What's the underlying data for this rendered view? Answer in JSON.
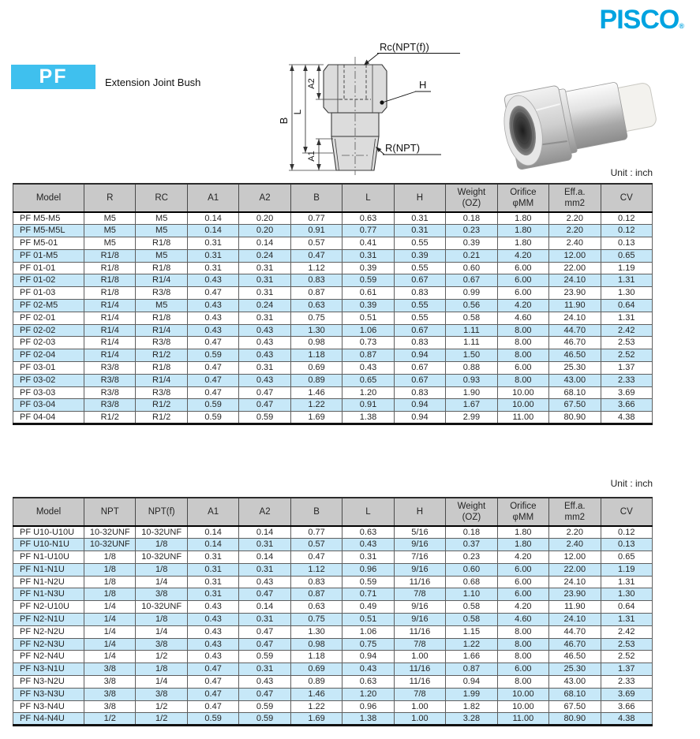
{
  "brand": {
    "logo_text": "PISCO",
    "registered_mark": "®"
  },
  "header": {
    "series_code": "PF",
    "series_title": "Extension Joint Bush"
  },
  "unit_note": "Unit : inch",
  "diagram": {
    "labels": {
      "top_thread": "Rc(NPT(f))",
      "hex": "H",
      "bottom_thread": "R(NPT)",
      "dim_b": "B",
      "dim_l": "L",
      "dim_a2": "A2",
      "dim_a1": "A1"
    }
  },
  "colors": {
    "accent": "#00A3E0",
    "badge": "#3FC0EE",
    "table_header_bg": "#C9C9C9",
    "row_alt": "#C7E8F8"
  },
  "tables": [
    {
      "name": "r-rc-spec-table",
      "columns": [
        "Model",
        "R",
        "RC",
        "A1",
        "A2",
        "B",
        "L",
        "H",
        "Weight\n(OZ)",
        "Orifice\nφMM",
        "Eff.a.\nmm2",
        "CV"
      ],
      "rows": [
        [
          "PF M5-M5",
          "M5",
          "M5",
          "0.14",
          "0.20",
          "0.77",
          "0.63",
          "0.31",
          "0.18",
          "1.80",
          "2.20",
          "0.12"
        ],
        [
          "PF M5-M5L",
          "M5",
          "M5",
          "0.14",
          "0.20",
          "0.91",
          "0.77",
          "0.31",
          "0.23",
          "1.80",
          "2.20",
          "0.12"
        ],
        [
          "PF M5-01",
          "M5",
          "R1/8",
          "0.31",
          "0.14",
          "0.57",
          "0.41",
          "0.55",
          "0.39",
          "1.80",
          "2.40",
          "0.13"
        ],
        [
          "PF 01-M5",
          "R1/8",
          "M5",
          "0.31",
          "0.24",
          "0.47",
          "0.31",
          "0.39",
          "0.21",
          "4.20",
          "12.00",
          "0.65"
        ],
        [
          "PF 01-01",
          "R1/8",
          "R1/8",
          "0.31",
          "0.31",
          "1.12",
          "0.39",
          "0.55",
          "0.60",
          "6.00",
          "22.00",
          "1.19"
        ],
        [
          "PF 01-02",
          "R1/8",
          "R1/4",
          "0.43",
          "0.31",
          "0.83",
          "0.59",
          "0.67",
          "0.67",
          "6.00",
          "24.10",
          "1.31"
        ],
        [
          "PF 01-03",
          "R1/8",
          "R3/8",
          "0.47",
          "0.31",
          "0.87",
          "0.61",
          "0.83",
          "0.99",
          "6.00",
          "23.90",
          "1.30"
        ],
        [
          "PF 02-M5",
          "R1/4",
          "M5",
          "0.43",
          "0.24",
          "0.63",
          "0.39",
          "0.55",
          "0.56",
          "4.20",
          "11.90",
          "0.64"
        ],
        [
          "PF 02-01",
          "R1/4",
          "R1/8",
          "0.43",
          "0.31",
          "0.75",
          "0.51",
          "0.55",
          "0.58",
          "4.60",
          "24.10",
          "1.31"
        ],
        [
          "PF 02-02",
          "R1/4",
          "R1/4",
          "0.43",
          "0.43",
          "1.30",
          "1.06",
          "0.67",
          "1.11",
          "8.00",
          "44.70",
          "2.42"
        ],
        [
          "PF 02-03",
          "R1/4",
          "R3/8",
          "0.47",
          "0.43",
          "0.98",
          "0.73",
          "0.83",
          "1.11",
          "8.00",
          "46.70",
          "2.53"
        ],
        [
          "PF 02-04",
          "R1/4",
          "R1/2",
          "0.59",
          "0.43",
          "1.18",
          "0.87",
          "0.94",
          "1.50",
          "8.00",
          "46.50",
          "2.52"
        ],
        [
          "PF 03-01",
          "R3/8",
          "R1/8",
          "0.47",
          "0.31",
          "0.69",
          "0.43",
          "0.67",
          "0.88",
          "6.00",
          "25.30",
          "1.37"
        ],
        [
          "PF 03-02",
          "R3/8",
          "R1/4",
          "0.47",
          "0.43",
          "0.89",
          "0.65",
          "0.67",
          "0.93",
          "8.00",
          "43.00",
          "2.33"
        ],
        [
          "PF 03-03",
          "R3/8",
          "R3/8",
          "0.47",
          "0.47",
          "1.46",
          "1.20",
          "0.83",
          "1.90",
          "10.00",
          "68.10",
          "3.69"
        ],
        [
          "PF 03-04",
          "R3/8",
          "R1/2",
          "0.59",
          "0.47",
          "1.22",
          "0.91",
          "0.94",
          "1.67",
          "10.00",
          "67.50",
          "3.66"
        ],
        [
          "PF 04-04",
          "R1/2",
          "R1/2",
          "0.59",
          "0.59",
          "1.69",
          "1.38",
          "0.94",
          "2.99",
          "11.00",
          "80.90",
          "4.38"
        ]
      ]
    },
    {
      "name": "npt-spec-table",
      "columns": [
        "Model",
        "NPT",
        "NPT(f)",
        "A1",
        "A2",
        "B",
        "L",
        "H",
        "Weight\n(OZ)",
        "Orifice\nφMM",
        "Eff.a.\nmm2",
        "CV"
      ],
      "rows": [
        [
          "PF U10-U10U",
          "10-32UNF",
          "10-32UNF",
          "0.14",
          "0.14",
          "0.77",
          "0.63",
          "5/16",
          "0.18",
          "1.80",
          "2.20",
          "0.12"
        ],
        [
          "PF U10-N1U",
          "10-32UNF",
          "1/8",
          "0.14",
          "0.31",
          "0.57",
          "0.43",
          "9/16",
          "0.37",
          "1.80",
          "2.40",
          "0.13"
        ],
        [
          "PF N1-U10U",
          "1/8",
          "10-32UNF",
          "0.31",
          "0.14",
          "0.47",
          "0.31",
          "7/16",
          "0.23",
          "4.20",
          "12.00",
          "0.65"
        ],
        [
          "PF N1-N1U",
          "1/8",
          "1/8",
          "0.31",
          "0.31",
          "1.12",
          "0.96",
          "9/16",
          "0.60",
          "6.00",
          "22.00",
          "1.19"
        ],
        [
          "PF N1-N2U",
          "1/8",
          "1/4",
          "0.31",
          "0.43",
          "0.83",
          "0.59",
          "11/16",
          "0.68",
          "6.00",
          "24.10",
          "1.31"
        ],
        [
          "PF N1-N3U",
          "1/8",
          "3/8",
          "0.31",
          "0.47",
          "0.87",
          "0.71",
          "7/8",
          "1.10",
          "6.00",
          "23.90",
          "1.30"
        ],
        [
          "PF N2-U10U",
          "1/4",
          "10-32UNF",
          "0.43",
          "0.14",
          "0.63",
          "0.49",
          "9/16",
          "0.58",
          "4.20",
          "11.90",
          "0.64"
        ],
        [
          "PF N2-N1U",
          "1/4",
          "1/8",
          "0.43",
          "0.31",
          "0.75",
          "0.51",
          "9/16",
          "0.58",
          "4.60",
          "24.10",
          "1.31"
        ],
        [
          "PF N2-N2U",
          "1/4",
          "1/4",
          "0.43",
          "0.47",
          "1.30",
          "1.06",
          "11/16",
          "1.15",
          "8.00",
          "44.70",
          "2.42"
        ],
        [
          "PF N2-N3U",
          "1/4",
          "3/8",
          "0.43",
          "0.47",
          "0.98",
          "0.75",
          "7/8",
          "1.22",
          "8.00",
          "46.70",
          "2.53"
        ],
        [
          "PF N2-N4U",
          "1/4",
          "1/2",
          "0.43",
          "0.59",
          "1.18",
          "0.94",
          "1.00",
          "1.66",
          "8.00",
          "46.50",
          "2.52"
        ],
        [
          "PF N3-N1U",
          "3/8",
          "1/8",
          "0.47",
          "0.31",
          "0.69",
          "0.43",
          "11/16",
          "0.87",
          "6.00",
          "25.30",
          "1.37"
        ],
        [
          "PF N3-N2U",
          "3/8",
          "1/4",
          "0.47",
          "0.43",
          "0.89",
          "0.63",
          "11/16",
          "0.94",
          "8.00",
          "43.00",
          "2.33"
        ],
        [
          "PF N3-N3U",
          "3/8",
          "3/8",
          "0.47",
          "0.47",
          "1.46",
          "1.20",
          "7/8",
          "1.99",
          "10.00",
          "68.10",
          "3.69"
        ],
        [
          "PF N3-N4U",
          "3/8",
          "1/2",
          "0.47",
          "0.59",
          "1.22",
          "0.96",
          "1.00",
          "1.82",
          "10.00",
          "67.50",
          "3.66"
        ],
        [
          "PF N4-N4U",
          "1/2",
          "1/2",
          "0.59",
          "0.59",
          "1.69",
          "1.38",
          "1.00",
          "3.28",
          "11.00",
          "80.90",
          "4.38"
        ]
      ]
    }
  ]
}
